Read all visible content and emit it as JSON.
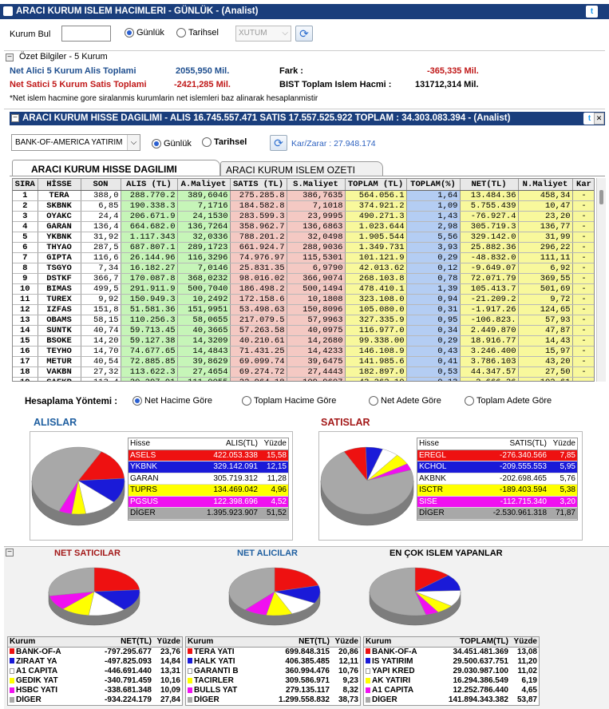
{
  "top": {
    "title": "ARACI KURUM ISLEM HACIMLERI - GÜNLÜK - (Analist)",
    "kurum_label": "Kurum Bul",
    "kurum_value": "",
    "daily_label": "Günlük",
    "period_label": "Tarihsel",
    "select_value": "XUTUM"
  },
  "summary": {
    "header": "Özet Bilgiler - 5 Kurum",
    "buy_label": "Net Alici 5 Kurum Alis Toplami",
    "buy_value": "2055,950 Mil.",
    "sell_label": "Net Satici 5 Kurum Satis Toplami",
    "sell_value": "-2421,285 Mil.",
    "diff_label": "Fark :",
    "diff_value": "-365,335 Mil.",
    "bist_label": "BIST Toplam Islem Hacmi :",
    "bist_value": "131712,314 Mil.",
    "note": "*Net islem hacmine gore siralanmis kurumlarin net islemleri baz alinarak hesaplanmistir"
  },
  "panel": {
    "title": "ARACI KURUM HISSE DAGILIMI - ALIS 16.745.557.471  SATIS 17.557.525.922  TOPLAM : 34.303.083.394 - (Analist)",
    "broker": "BANK-OF-AMERICA YATIRIM",
    "daily_label": "Günlük",
    "period_label": "Tarihsel",
    "profit_label": "Kar/Zarar : 27.948.174",
    "tab_active": "ARACI KURUM HISSE DAGILIMI",
    "tab_inactive": "ARACI KURUM ISLEM OZETI"
  },
  "grid": {
    "headers": [
      "SIRA",
      "HİSSE",
      "SON",
      "ALIS (TL)",
      "A.Maliyet",
      "SATIS (TL)",
      "S.Maliyet",
      "TOPLAM (TL)",
      "TOPLAM(%)",
      "NET(TL)",
      "N.Maliyet",
      "Kar"
    ],
    "rows": [
      [
        "1",
        "TERA",
        "388,0",
        "288.770.2",
        "389,6046",
        "275.285.8",
        "386,7635",
        "564.056.1",
        "1,64",
        "13.484.36",
        "458,34",
        "-"
      ],
      [
        "2",
        "SKBNK",
        "6,85",
        "190.338.3",
        "7,1716",
        "184.582.8",
        "7,1018",
        "374.921.2",
        "1,09",
        "5.755.439",
        "10,47",
        "-"
      ],
      [
        "3",
        "OYAKC",
        "24,4",
        "206.671.9",
        "24,1530",
        "283.599.3",
        "23,9995",
        "490.271.3",
        "1,43",
        "-76.927.4",
        "23,20",
        "-"
      ],
      [
        "4",
        "GARAN",
        "136,4",
        "664.682.0",
        "136,7264",
        "358.962.7",
        "136,6863",
        "1.023.644",
        "2,98",
        "305.719.3",
        "136,77",
        "-"
      ],
      [
        "5",
        "YKBNK",
        "31,92",
        "1.117.343",
        "32,0336",
        "788.201.2",
        "32,0498",
        "1.905.544",
        "5,56",
        "329.142.0",
        "31,99",
        "-"
      ],
      [
        "6",
        "THYAO",
        "287,5",
        "687.807.1",
        "289,1723",
        "661.924.7",
        "288,9036",
        "1.349.731",
        "3,93",
        "25.882.36",
        "296,22",
        "-"
      ],
      [
        "7",
        "GIPTA",
        "116,6",
        "26.144.96",
        "116,3296",
        "74.976.97",
        "115,5301",
        "101.121.9",
        "0,29",
        "-48.832.0",
        "111,11",
        "-"
      ],
      [
        "8",
        "TSGYO",
        "7,34",
        "16.182.27",
        "7,0146",
        "25.831.35",
        "6,9790",
        "42.013.62",
        "0,12",
        "-9.649.07",
        "6,92",
        "-"
      ],
      [
        "9",
        "DSTKF",
        "366,7",
        "170.087.8",
        "368,0232",
        "98.016.02",
        "366,9074",
        "268.103.8",
        "0,78",
        "72.071.79",
        "369,55",
        "-"
      ],
      [
        "10",
        "BIMAS",
        "499,5",
        "291.911.9",
        "500,7040",
        "186.498.2",
        "500,1494",
        "478.410.1",
        "1,39",
        "105.413.7",
        "501,69",
        "-"
      ],
      [
        "11",
        "TUREX",
        "9,92",
        "150.949.3",
        "10,2492",
        "172.158.6",
        "10,1808",
        "323.108.0",
        "0,94",
        "-21.209.2",
        "9,72",
        "-"
      ],
      [
        "12",
        "IZFAS",
        "151,8",
        "51.581.36",
        "151,9951",
        "53.498.63",
        "150,8096",
        "105.080.0",
        "0,31",
        "-1.917.26",
        "124,65",
        "-"
      ],
      [
        "13",
        "OBAMS",
        "58,15",
        "110.256.3",
        "58,0655",
        "217.079.5",
        "57,9963",
        "327.335.9",
        "0,95",
        "-106.823.",
        "57,93",
        "-"
      ],
      [
        "14",
        "SUNTK",
        "40,74",
        "59.713.45",
        "40,3665",
        "57.263.58",
        "40,0975",
        "116.977.0",
        "0,34",
        "2.449.870",
        "47,87",
        "-"
      ],
      [
        "15",
        "BSOKE",
        "14,20",
        "59.127.38",
        "14,3209",
        "40.210.61",
        "14,2680",
        "99.338.00",
        "0,29",
        "18.916.77",
        "14,43",
        "-"
      ],
      [
        "16",
        "TEYHO",
        "14,70",
        "74.677.65",
        "14,4843",
        "71.431.25",
        "14,4233",
        "146.108.9",
        "0,43",
        "3.246.400",
        "15,97",
        "-"
      ],
      [
        "17",
        "METUR",
        "40,54",
        "72.885.85",
        "39,8629",
        "69.099.74",
        "39,6475",
        "141.985.6",
        "0,41",
        "3.786.103",
        "43,20",
        "-"
      ],
      [
        "18",
        "VAKBN",
        "27,32",
        "113.622.3",
        "27,4654",
        "69.274.72",
        "27,4443",
        "182.897.0",
        "0,53",
        "44.347.57",
        "27,50",
        "-"
      ],
      [
        "19",
        "SAFKR",
        "113,4",
        "20.297.91",
        "111,0055",
        "22.964.18",
        "109,9607",
        "43.262.10",
        "0,13",
        "-2.666.26",
        "102,61",
        "-"
      ],
      [
        "20",
        "GRTHO",
        "355,2",
        "40.242.48",
        "359,9378",
        "32.333.09",
        "358,1860",
        "72.575.57",
        "0,21",
        "7.909.394",
        "367,28",
        "-"
      ]
    ]
  },
  "calc": {
    "label": "Hesaplama Yöntemi :",
    "options": [
      "Net Hacime Göre",
      "Toplam Hacime Göre",
      "Net Adete Göre",
      "Toplam Adete Göre"
    ]
  },
  "alis": {
    "title": "ALISLAR",
    "col1": "Hisse",
    "col2": "ALIS(TL)",
    "col3": "Yüzde",
    "rows": [
      {
        "name": "ASELS",
        "value": "422.053.338",
        "pct": "15,58",
        "color": "#ee1111",
        "fg": "#fff"
      },
      {
        "name": "YKBNK",
        "value": "329.142.091",
        "pct": "12,15",
        "color": "#1a1ad8",
        "fg": "#fff"
      },
      {
        "name": "GARAN",
        "value": "305.719.312",
        "pct": "11,28",
        "color": "#ffffff",
        "fg": "#000"
      },
      {
        "name": "TUPRS",
        "value": "134.469.042",
        "pct": "4,96",
        "color": "#ffff00",
        "fg": "#000"
      },
      {
        "name": "PGSUS",
        "value": "122.398.696",
        "pct": "4,52",
        "color": "#f010f0",
        "fg": "#fff"
      },
      {
        "name": "DİGER",
        "value": "1.395.923.907",
        "pct": "51,52",
        "color": "#a8a8a8",
        "fg": "#000"
      }
    ],
    "chart_data": {
      "type": "pie",
      "title": "ALISLAR",
      "categories": [
        "ASELS",
        "YKBNK",
        "GARAN",
        "TUPRS",
        "PGSUS",
        "DİGER"
      ],
      "values": [
        15.58,
        12.15,
        11.28,
        4.96,
        4.52,
        51.52
      ]
    }
  },
  "satis": {
    "title": "SATISLAR",
    "col1": "Hisse",
    "col2": "SATIS(TL)",
    "col3": "Yüzde",
    "rows": [
      {
        "name": "EREGL",
        "value": "-276.340.566",
        "pct": "7,85",
        "color": "#ee1111",
        "fg": "#fff"
      },
      {
        "name": "KCHOL",
        "value": "-209.555.553",
        "pct": "5,95",
        "color": "#1a1ad8",
        "fg": "#fff"
      },
      {
        "name": "AKBNK",
        "value": "-202.698.465",
        "pct": "5,76",
        "color": "#ffffff",
        "fg": "#000"
      },
      {
        "name": "ISCTR",
        "value": "-189.403.594",
        "pct": "5,38",
        "color": "#ffff00",
        "fg": "#000"
      },
      {
        "name": "SISE",
        "value": "-112.715.340",
        "pct": "3,20",
        "color": "#f010f0",
        "fg": "#fff"
      },
      {
        "name": "DİGER",
        "value": "-2.530.961.318",
        "pct": "71,87",
        "color": "#a8a8a8",
        "fg": "#000"
      }
    ],
    "chart_data": {
      "type": "pie",
      "title": "SATISLAR",
      "categories": [
        "EREGL",
        "KCHOL",
        "AKBNK",
        "ISCTR",
        "SISE",
        "DİGER"
      ],
      "values": [
        7.85,
        5.95,
        5.76,
        5.38,
        3.2,
        71.87
      ]
    }
  },
  "bottom": [
    {
      "title": "NET SATICILAR",
      "col1": "Kurum",
      "col2": "NET(TL)",
      "col3": "Yüzde",
      "rows": [
        {
          "name": "BANK-OF-A",
          "value": "-797.295.677",
          "pct": "23,76",
          "color": "#ee1111"
        },
        {
          "name": "ZIRAAT YA",
          "value": "-497.825.093",
          "pct": "14,84",
          "color": "#1a1ad8"
        },
        {
          "name": "A1 CAPITA",
          "value": "-446.691.440",
          "pct": "13,31",
          "color": "#ffffff"
        },
        {
          "name": "GEDIK YAT",
          "value": "-340.791.459",
          "pct": "10,16",
          "color": "#ffff00"
        },
        {
          "name": "HSBC YATI",
          "value": "-338.681.348",
          "pct": "10,09",
          "color": "#f010f0"
        },
        {
          "name": "DİGER",
          "value": "-934.224.179",
          "pct": "27,84",
          "color": "#a8a8a8"
        }
      ],
      "chart_data": {
        "type": "pie",
        "title": "NET SATICILAR",
        "categories": [
          "BANK-OF-A",
          "ZIRAAT YA",
          "A1 CAPITA",
          "GEDIK YAT",
          "HSBC YATI",
          "DİGER"
        ],
        "values": [
          23.76,
          14.84,
          13.31,
          10.16,
          10.09,
          27.84
        ]
      }
    },
    {
      "title": "NET ALICILAR",
      "col1": "Kurum",
      "col2": "NET(TL)",
      "col3": "Yüzde",
      "rows": [
        {
          "name": "TERA YATI",
          "value": "699.848.315",
          "pct": "20,86",
          "color": "#ee1111"
        },
        {
          "name": "HALK YATI",
          "value": "406.385.485",
          "pct": "12,11",
          "color": "#1a1ad8"
        },
        {
          "name": "GARANTI B",
          "value": "360.994.476",
          "pct": "10,76",
          "color": "#ffffff"
        },
        {
          "name": "TACIRLER",
          "value": "309.586.971",
          "pct": "9,23",
          "color": "#ffff00"
        },
        {
          "name": "BULLS YAT",
          "value": "279.135.117",
          "pct": "8,32",
          "color": "#f010f0"
        },
        {
          "name": "DİGER",
          "value": "1.299.558.832",
          "pct": "38,73",
          "color": "#a8a8a8"
        }
      ],
      "chart_data": {
        "type": "pie",
        "title": "NET ALICILAR",
        "categories": [
          "TERA YATI",
          "HALK YATI",
          "GARANTI B",
          "TACIRLER",
          "BULLS YAT",
          "DİGER"
        ],
        "values": [
          20.86,
          12.11,
          10.76,
          9.23,
          8.32,
          38.73
        ]
      }
    },
    {
      "title": "EN ÇOK ISLEM YAPANLAR",
      "col1": "Kurum",
      "col2": "TOPLAM(TL)",
      "col3": "Yüzde",
      "rows": [
        {
          "name": "BANK-OF-A",
          "value": "34.451.481.369",
          "pct": "13,08",
          "color": "#ee1111"
        },
        {
          "name": "IS YATIRIM",
          "value": "29.500.637.751",
          "pct": "11,20",
          "color": "#1a1ad8"
        },
        {
          "name": "YAPI KRED",
          "value": "29.030.987.100",
          "pct": "11,02",
          "color": "#ffffff"
        },
        {
          "name": "AK YATIRI",
          "value": "16.294.386.549",
          "pct": "6,19",
          "color": "#ffff00"
        },
        {
          "name": "A1 CAPITA",
          "value": "12.252.786.440",
          "pct": "4,65",
          "color": "#f010f0"
        },
        {
          "name": "DİGER",
          "value": "141.894.343.382",
          "pct": "53,87",
          "color": "#a8a8a8"
        }
      ],
      "chart_data": {
        "type": "pie",
        "title": "EN ÇOK ISLEM YAPANLAR",
        "categories": [
          "BANK-OF-A",
          "IS YATIRIM",
          "YAPI KRED",
          "AK YATIRI",
          "A1 CAPITA",
          "DİGER"
        ],
        "values": [
          13.08,
          11.2,
          11.02,
          6.19,
          4.65,
          53.87
        ]
      }
    }
  ]
}
